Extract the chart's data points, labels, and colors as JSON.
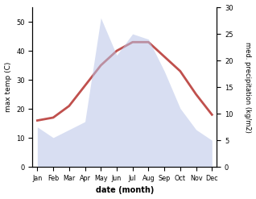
{
  "months": [
    "Jan",
    "Feb",
    "Mar",
    "Apr",
    "May",
    "Jun",
    "Jul",
    "Aug",
    "Sep",
    "Oct",
    "Nov",
    "Dec"
  ],
  "temp": [
    16,
    17,
    21,
    28,
    35,
    40,
    43,
    43,
    38,
    33,
    25,
    18
  ],
  "precip": [
    7.5,
    5.5,
    7,
    8.5,
    28,
    21,
    25,
    24,
    18,
    11,
    7,
    5
  ],
  "temp_color": "#c0504d",
  "precip_color_fill": "#b8c4e8",
  "xlabel": "date (month)",
  "ylabel_left": "max temp (C)",
  "ylabel_right": "med. precipitation (kg/m2)",
  "ylim_left": [
    0,
    55
  ],
  "ylim_right": [
    0,
    30
  ],
  "yticks_left": [
    0,
    10,
    20,
    30,
    40,
    50
  ],
  "yticks_right": [
    0,
    5,
    10,
    15,
    20,
    25,
    30
  ],
  "line_width": 2.0,
  "background_color": "#ffffff"
}
